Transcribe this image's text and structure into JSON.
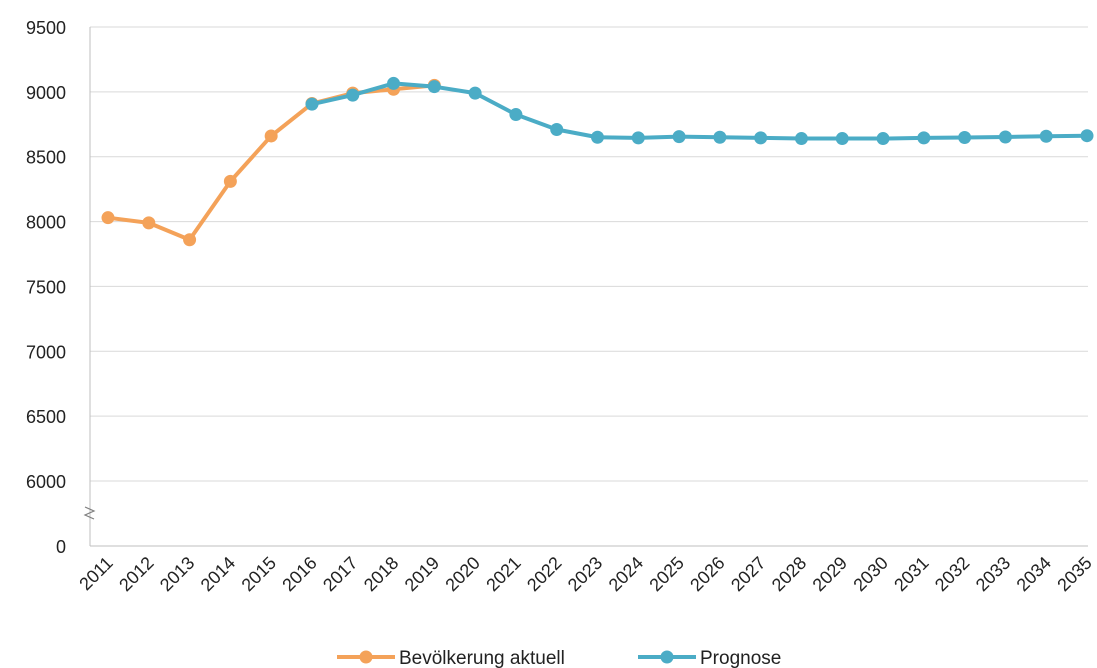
{
  "chart_data": {
    "type": "line",
    "title": "",
    "xlabel": "",
    "ylabel": "",
    "categories": [
      "2011",
      "2012",
      "2013",
      "2014",
      "2015",
      "2016",
      "2017",
      "2018",
      "2019",
      "2020",
      "2021",
      "2022",
      "2023",
      "2024",
      "2025",
      "2026",
      "2027",
      "2028",
      "2029",
      "2030",
      "2031",
      "2032",
      "2033",
      "2034",
      "2035"
    ],
    "y_ticks": [
      "0",
      "6000",
      "6500",
      "7000",
      "7500",
      "8000",
      "8500",
      "9000",
      "9500"
    ],
    "axis_break": {
      "from": 0,
      "to": 6000
    },
    "ylim": [
      5750,
      9500
    ],
    "grid": true,
    "legend_position": "bottom",
    "series": [
      {
        "name": "Bevölkerung aktuell",
        "color": "#F4A259",
        "values": [
          8030,
          7990,
          7860,
          8310,
          8660,
          8910,
          8990,
          9020,
          9050,
          null,
          null,
          null,
          null,
          null,
          null,
          null,
          null,
          null,
          null,
          null,
          null,
          null,
          null,
          null,
          null
        ]
      },
      {
        "name": "Prognose",
        "color": "#4BACC6",
        "values": [
          null,
          null,
          null,
          null,
          null,
          8905,
          8975,
          9065,
          9040,
          8990,
          8825,
          8710,
          8650,
          8645,
          8655,
          8650,
          8645,
          8640,
          8640,
          8640,
          8645,
          8648,
          8652,
          8658,
          8662
        ]
      }
    ]
  }
}
